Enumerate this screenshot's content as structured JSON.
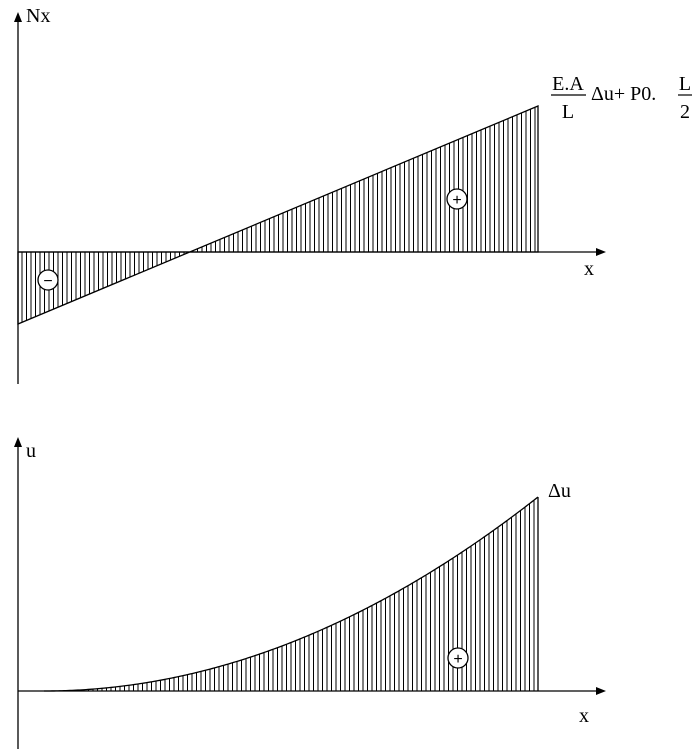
{
  "top_plot": {
    "y_axis_label": "Nx",
    "x_axis_label": "x",
    "negative_sign": "−",
    "positive_sign": "+",
    "end_label": {
      "frac1_num": "E.A",
      "frac1_den": "L",
      "middle": "Δu+ P0.",
      "frac2_num": "L",
      "frac2_den": "2"
    }
  },
  "bottom_plot": {
    "y_axis_label": "u",
    "x_axis_label": "x",
    "positive_sign": "+",
    "end_label": "Δu"
  },
  "colors": {
    "ink": "#000000",
    "background": "#ffffff"
  }
}
